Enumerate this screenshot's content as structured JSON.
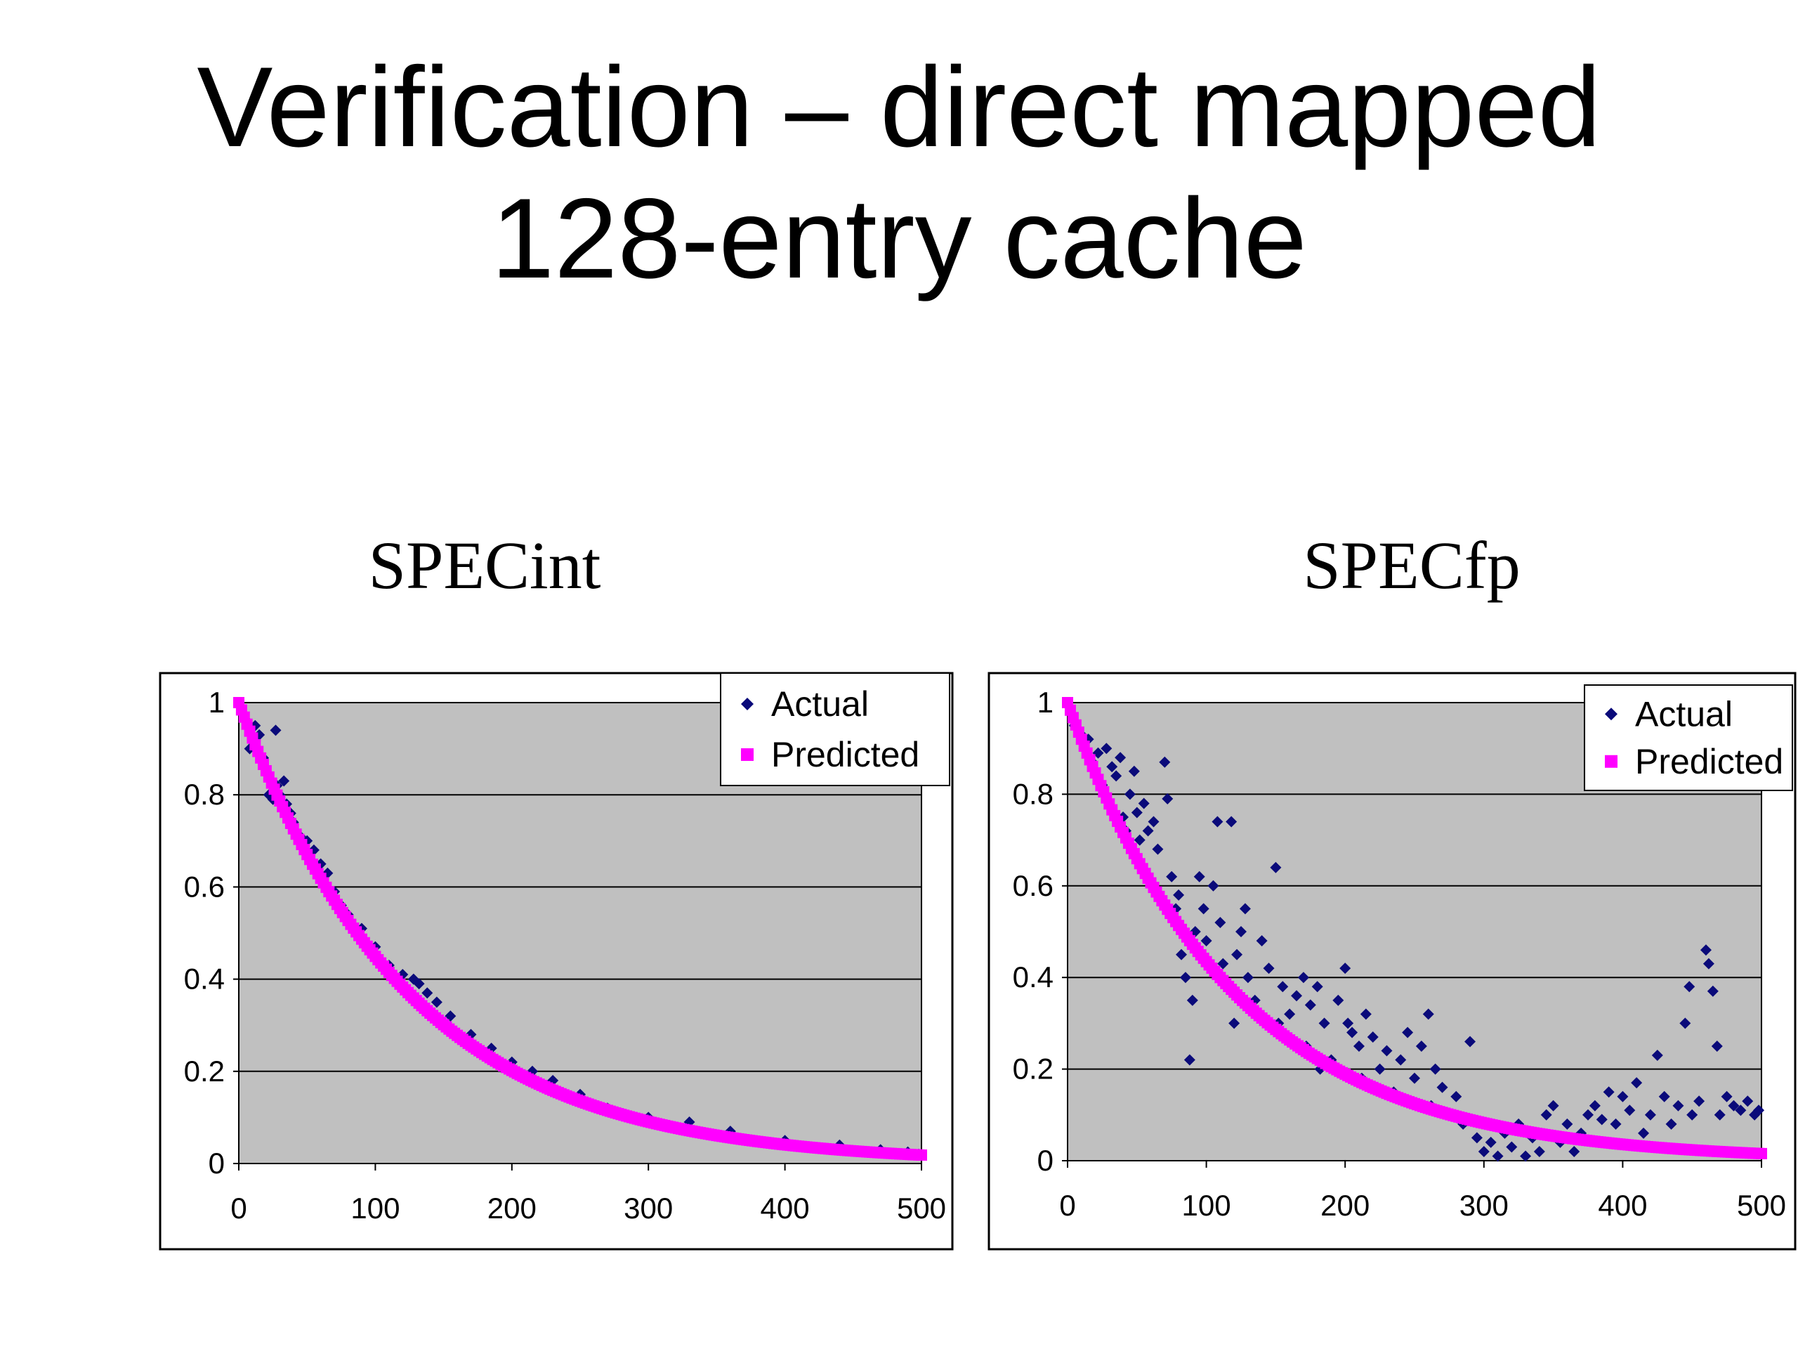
{
  "slide": {
    "title_line1": "Verification – direct mapped",
    "title_line2": "128-entry cache"
  },
  "colors": {
    "actual": "#0a0a7a",
    "predicted": "#ff00ff",
    "plot_bg": "#c0c0c0",
    "grid": "#000000"
  },
  "chart_data": [
    {
      "type": "scatter",
      "title": "SPECint",
      "xlim": [
        0,
        500
      ],
      "ylim": [
        0,
        1
      ],
      "xticks": [
        "0",
        "100",
        "200",
        "300",
        "400",
        "500"
      ],
      "yticks": [
        "0",
        "0.2",
        "0.4",
        "0.6",
        "0.8",
        "1"
      ],
      "grid": true,
      "legend_position": "top-right",
      "series": [
        {
          "name": "Actual",
          "marker": "diamond",
          "points": [
            [
              2,
              0.99
            ],
            [
              6,
              0.96
            ],
            [
              8,
              0.9
            ],
            [
              10,
              0.92
            ],
            [
              12,
              0.95
            ],
            [
              15,
              0.93
            ],
            [
              18,
              0.88
            ],
            [
              20,
              0.85
            ],
            [
              22,
              0.8
            ],
            [
              25,
              0.79
            ],
            [
              27,
              0.94
            ],
            [
              28,
              0.82
            ],
            [
              30,
              0.8
            ],
            [
              33,
              0.83
            ],
            [
              35,
              0.78
            ],
            [
              38,
              0.76
            ],
            [
              40,
              0.74
            ],
            [
              45,
              0.71
            ],
            [
              50,
              0.7
            ],
            [
              55,
              0.68
            ],
            [
              60,
              0.65
            ],
            [
              65,
              0.63
            ],
            [
              70,
              0.59
            ],
            [
              75,
              0.56
            ],
            [
              80,
              0.54
            ],
            [
              90,
              0.51
            ],
            [
              100,
              0.47
            ],
            [
              110,
              0.43
            ],
            [
              120,
              0.41
            ],
            [
              128,
              0.4
            ],
            [
              132,
              0.39
            ],
            [
              138,
              0.37
            ],
            [
              145,
              0.35
            ],
            [
              155,
              0.32
            ],
            [
              170,
              0.28
            ],
            [
              185,
              0.25
            ],
            [
              200,
              0.22
            ],
            [
              215,
              0.2
            ],
            [
              230,
              0.18
            ],
            [
              250,
              0.15
            ],
            [
              270,
              0.12
            ],
            [
              300,
              0.1
            ],
            [
              330,
              0.09
            ],
            [
              360,
              0.07
            ],
            [
              400,
              0.05
            ],
            [
              440,
              0.04
            ],
            [
              470,
              0.03
            ],
            [
              490,
              0.025
            ],
            [
              498,
              0.02
            ]
          ]
        },
        {
          "name": "Predicted",
          "marker": "square",
          "decay": 125
        }
      ]
    },
    {
      "type": "scatter",
      "title": "SPECfp",
      "xlim": [
        0,
        500
      ],
      "ylim": [
        0,
        1
      ],
      "xticks": [
        "0",
        "100",
        "200",
        "300",
        "400",
        "500"
      ],
      "yticks": [
        "0",
        "0.2",
        "0.4",
        "0.6",
        "0.8",
        "1"
      ],
      "grid": true,
      "legend_position": "top-right",
      "series": [
        {
          "name": "Actual",
          "marker": "diamond",
          "points": [
            [
              2,
              0.99
            ],
            [
              5,
              0.95
            ],
            [
              10,
              0.93
            ],
            [
              12,
              0.9
            ],
            [
              15,
              0.92
            ],
            [
              18,
              0.87
            ],
            [
              20,
              0.85
            ],
            [
              22,
              0.89
            ],
            [
              25,
              0.82
            ],
            [
              28,
              0.9
            ],
            [
              30,
              0.78
            ],
            [
              32,
              0.86
            ],
            [
              35,
              0.84
            ],
            [
              38,
              0.88
            ],
            [
              40,
              0.75
            ],
            [
              42,
              0.72
            ],
            [
              45,
              0.8
            ],
            [
              48,
              0.85
            ],
            [
              50,
              0.76
            ],
            [
              52,
              0.7
            ],
            [
              55,
              0.78
            ],
            [
              58,
              0.72
            ],
            [
              62,
              0.74
            ],
            [
              65,
              0.68
            ],
            [
              70,
              0.87
            ],
            [
              72,
              0.79
            ],
            [
              75,
              0.62
            ],
            [
              78,
              0.55
            ],
            [
              80,
              0.58
            ],
            [
              82,
              0.45
            ],
            [
              85,
              0.4
            ],
            [
              88,
              0.22
            ],
            [
              90,
              0.35
            ],
            [
              92,
              0.5
            ],
            [
              95,
              0.62
            ],
            [
              98,
              0.55
            ],
            [
              100,
              0.48
            ],
            [
              105,
              0.6
            ],
            [
              108,
              0.74
            ],
            [
              110,
              0.52
            ],
            [
              112,
              0.43
            ],
            [
              115,
              0.38
            ],
            [
              118,
              0.74
            ],
            [
              120,
              0.3
            ],
            [
              122,
              0.45
            ],
            [
              125,
              0.5
            ],
            [
              128,
              0.55
            ],
            [
              130,
              0.4
            ],
            [
              135,
              0.35
            ],
            [
              140,
              0.48
            ],
            [
              145,
              0.42
            ],
            [
              150,
              0.64
            ],
            [
              152,
              0.3
            ],
            [
              155,
              0.38
            ],
            [
              160,
              0.32
            ],
            [
              165,
              0.36
            ],
            [
              170,
              0.4
            ],
            [
              172,
              0.25
            ],
            [
              175,
              0.34
            ],
            [
              180,
              0.38
            ],
            [
              182,
              0.2
            ],
            [
              185,
              0.3
            ],
            [
              190,
              0.22
            ],
            [
              195,
              0.35
            ],
            [
              200,
              0.42
            ],
            [
              202,
              0.3
            ],
            [
              205,
              0.28
            ],
            [
              210,
              0.25
            ],
            [
              212,
              0.18
            ],
            [
              215,
              0.32
            ],
            [
              220,
              0.27
            ],
            [
              225,
              0.2
            ],
            [
              230,
              0.24
            ],
            [
              235,
              0.15
            ],
            [
              240,
              0.22
            ],
            [
              245,
              0.28
            ],
            [
              250,
              0.18
            ],
            [
              255,
              0.25
            ],
            [
              260,
              0.32
            ],
            [
              262,
              0.12
            ],
            [
              265,
              0.2
            ],
            [
              270,
              0.16
            ],
            [
              275,
              0.1
            ],
            [
              280,
              0.14
            ],
            [
              285,
              0.08
            ],
            [
              290,
              0.26
            ],
            [
              295,
              0.05
            ],
            [
              300,
              0.02
            ],
            [
              302,
              0.08
            ],
            [
              305,
              0.04
            ],
            [
              310,
              0.01
            ],
            [
              315,
              0.06
            ],
            [
              320,
              0.03
            ],
            [
              325,
              0.08
            ],
            [
              330,
              0.01
            ],
            [
              335,
              0.05
            ],
            [
              340,
              0.02
            ],
            [
              345,
              0.1
            ],
            [
              350,
              0.12
            ],
            [
              355,
              0.04
            ],
            [
              360,
              0.08
            ],
            [
              365,
              0.02
            ],
            [
              370,
              0.06
            ],
            [
              375,
              0.1
            ],
            [
              380,
              0.12
            ],
            [
              385,
              0.09
            ],
            [
              390,
              0.15
            ],
            [
              395,
              0.08
            ],
            [
              400,
              0.14
            ],
            [
              405,
              0.11
            ],
            [
              410,
              0.17
            ],
            [
              415,
              0.06
            ],
            [
              420,
              0.1
            ],
            [
              425,
              0.23
            ],
            [
              430,
              0.14
            ],
            [
              435,
              0.08
            ],
            [
              440,
              0.12
            ],
            [
              445,
              0.3
            ],
            [
              448,
              0.38
            ],
            [
              450,
              0.1
            ],
            [
              455,
              0.13
            ],
            [
              460,
              0.46
            ],
            [
              462,
              0.43
            ],
            [
              465,
              0.37
            ],
            [
              468,
              0.25
            ],
            [
              470,
              0.1
            ],
            [
              475,
              0.14
            ],
            [
              480,
              0.12
            ],
            [
              485,
              0.11
            ],
            [
              490,
              0.13
            ],
            [
              495,
              0.1
            ],
            [
              498,
              0.11
            ]
          ]
        },
        {
          "name": "Predicted",
          "marker": "square",
          "decay": 120
        }
      ]
    }
  ]
}
